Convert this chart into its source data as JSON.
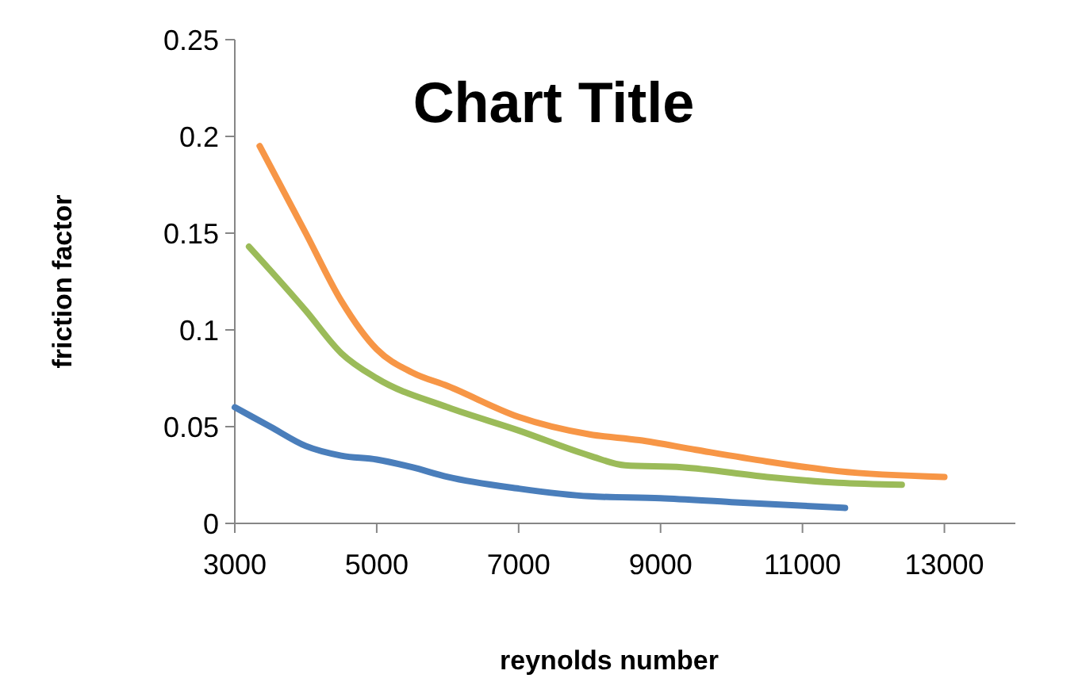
{
  "chart_data": {
    "type": "line",
    "title": "Chart Title",
    "xlabel": "reynolds number",
    "ylabel": "friction factor",
    "xlim": [
      3000,
      14000
    ],
    "xticks": [
      3000,
      5000,
      7000,
      9000,
      11000,
      13000
    ],
    "ylim": [
      0,
      0.25
    ],
    "yticks": [
      0,
      0.05,
      0.1,
      0.15,
      0.2,
      0.25
    ],
    "grid": false,
    "marker": "none",
    "line_style": "solid",
    "series": [
      {
        "color": "#4a7ebb",
        "x": [
          3000,
          3500,
          4000,
          4500,
          5000,
          5500,
          6000,
          7000,
          8000,
          9000,
          10000,
          11600
        ],
        "values": [
          0.06,
          0.05,
          0.04,
          0.035,
          0.033,
          0.029,
          0.024,
          0.018,
          0.014,
          0.013,
          0.011,
          0.008
        ]
      },
      {
        "color": "#f79646",
        "x": [
          3350,
          4000,
          4500,
          5000,
          5500,
          6000,
          7000,
          8000,
          8700,
          9500,
          10500,
          11500,
          13000
        ],
        "values": [
          0.195,
          0.15,
          0.115,
          0.09,
          0.078,
          0.071,
          0.055,
          0.046,
          0.043,
          0.038,
          0.032,
          0.027,
          0.024
        ]
      },
      {
        "color": "#9bbb59",
        "x": [
          3200,
          4000,
          4500,
          5000,
          6000,
          7000,
          8000,
          8500,
          9300,
          10500,
          11500,
          12400
        ],
        "values": [
          0.143,
          0.11,
          0.088,
          0.075,
          0.06,
          0.048,
          0.035,
          0.03,
          0.029,
          0.024,
          0.021,
          0.02
        ]
      }
    ]
  }
}
